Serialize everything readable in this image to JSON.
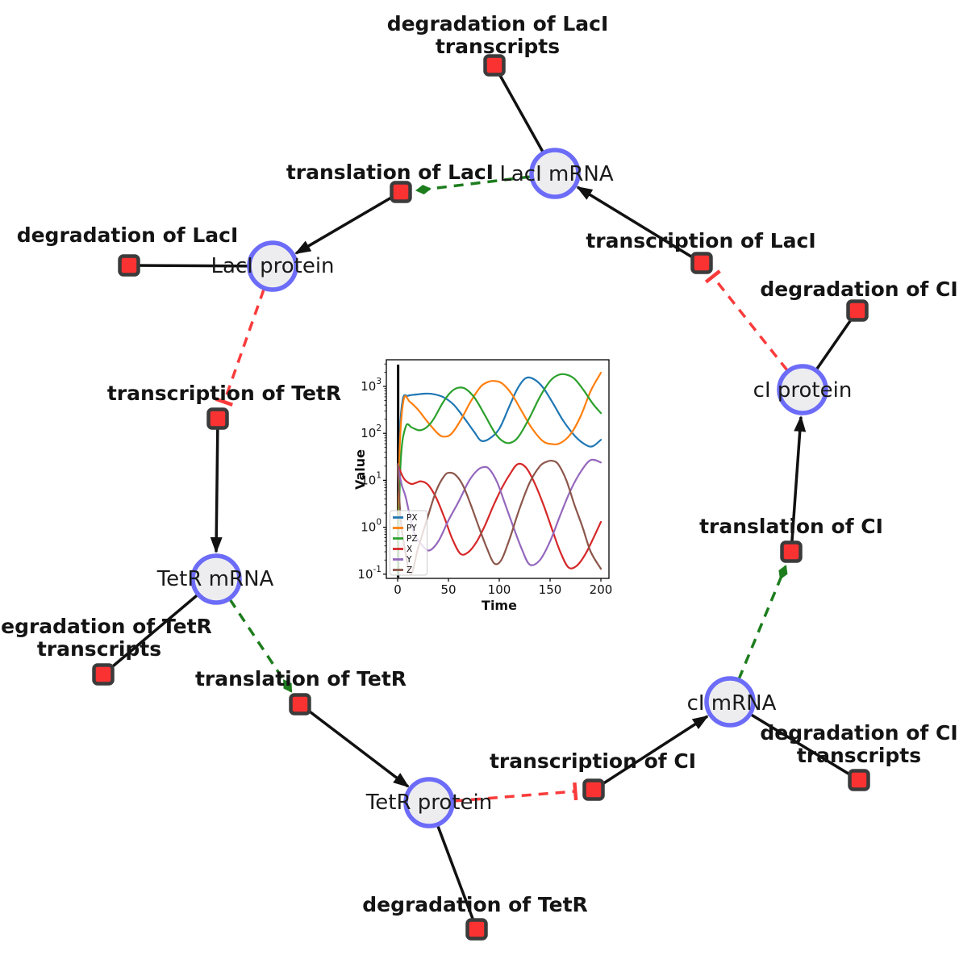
{
  "diagram": {
    "species_nodes": [
      {
        "id": "laci-mrna",
        "label": "LacI mRNA"
      },
      {
        "id": "laci-protein",
        "label": "LacI protein"
      },
      {
        "id": "ci-protein",
        "label": "cI protein"
      },
      {
        "id": "tetr-mrna",
        "label": "TetR mRNA"
      },
      {
        "id": "ci-mrna",
        "label": "cI mRNA"
      },
      {
        "id": "tetr-protein",
        "label": "TetR protein"
      }
    ],
    "reaction_nodes": [
      {
        "id": "degradation-laci-transcripts",
        "line1": "degradation of LacI",
        "line2": "transcripts"
      },
      {
        "id": "translation-laci",
        "line1": "translation of LacI"
      },
      {
        "id": "degradation-laci",
        "line1": "degradation of LacI"
      },
      {
        "id": "transcription-laci",
        "line1": "transcription of LacI"
      },
      {
        "id": "degradation-ci",
        "line1": "degradation of CI"
      },
      {
        "id": "transcription-tetr",
        "line1": "transcription of TetR"
      },
      {
        "id": "translation-ci",
        "line1": "translation of CI"
      },
      {
        "id": "degradation-tetr-transcripts",
        "line1": "degradation of TetR",
        "line2": "transcripts"
      },
      {
        "id": "translation-tetr",
        "line1": "translation of TetR"
      },
      {
        "id": "transcription-ci",
        "line1": "transcription of CI"
      },
      {
        "id": "degradation-ci-transcripts",
        "line1": "degradation of CI",
        "line2": "transcripts"
      },
      {
        "id": "degradation-tetr",
        "line1": "degradation of TetR"
      }
    ],
    "colors": {
      "species_fill": "#ededf0",
      "species_border": "#6c6cf8",
      "reaction_fill": "#fa3232",
      "reaction_border": "#3b3b3b",
      "edge": "#111111",
      "catalysis_edge": "#1d7d1d",
      "inhibition_edge": "#f93b3b"
    }
  },
  "chart_data": {
    "type": "line",
    "title": "",
    "xlabel": "Time",
    "ylabel": "Value",
    "yscale": "log",
    "xlim": [
      0,
      200
    ],
    "ylim": [
      0.083,
      3700
    ],
    "x_ticks": [
      0,
      50,
      100,
      150,
      200
    ],
    "y_tick_exponents": [
      -1,
      0,
      1,
      2,
      3
    ],
    "grid": false,
    "legend_position": "lower left",
    "vline_x": 0.5,
    "series": [
      {
        "name": "PX",
        "color": "#1f77b4",
        "x": [
          0,
          2,
          5,
          10,
          18,
          27,
          35,
          45,
          55,
          65,
          75,
          82,
          90,
          100,
          110,
          118,
          126,
          134,
          143,
          153,
          163,
          175,
          185,
          192,
          200
        ],
        "values": [
          0.1,
          60,
          520,
          630,
          670,
          700,
          685,
          590,
          410,
          220,
          110,
          70,
          76,
          125,
          380,
          900,
          1500,
          1430,
          950,
          430,
          185,
          85,
          57,
          53,
          73
        ]
      },
      {
        "name": "PY",
        "color": "#ff7f0e",
        "x": [
          0,
          2,
          6,
          12,
          20,
          30,
          40,
          46,
          53,
          62,
          72,
          82,
          90,
          96,
          103,
          112,
          122,
          132,
          143,
          152,
          160,
          170,
          180,
          190,
          200
        ],
        "values": [
          0.1,
          45,
          530,
          470,
          320,
          170,
          97,
          85,
          98,
          190,
          480,
          1000,
          1270,
          1300,
          1150,
          700,
          300,
          130,
          68,
          59,
          62,
          95,
          230,
          800,
          1950
        ]
      },
      {
        "name": "PZ",
        "color": "#2ca02c",
        "x": [
          0,
          3,
          8,
          14,
          21,
          28,
          35,
          45,
          53,
          60,
          67,
          76,
          86,
          96,
          104,
          111,
          119,
          130,
          140,
          150,
          158,
          166,
          174,
          183,
          192,
          200
        ],
        "values": [
          0.1,
          25,
          140,
          133,
          116,
          132,
          195,
          470,
          780,
          940,
          880,
          560,
          240,
          100,
          67,
          63,
          85,
          220,
          600,
          1300,
          1750,
          1780,
          1450,
          830,
          430,
          270
        ]
      },
      {
        "name": "X",
        "color": "#d62728",
        "x": [
          0,
          6,
          13,
          18,
          23,
          30,
          38,
          46,
          54,
          62,
          70,
          78,
          86,
          94,
          102,
          110,
          118,
          126,
          134,
          143,
          152,
          160,
          168,
          176,
          184,
          192,
          200
        ],
        "values": [
          22,
          11,
          8.4,
          8.8,
          9.5,
          8,
          4.2,
          1.6,
          0.55,
          0.27,
          0.3,
          0.5,
          1.1,
          2.8,
          6.5,
          13,
          22,
          19,
          9.5,
          3.2,
          0.9,
          0.3,
          0.14,
          0.15,
          0.25,
          0.55,
          1.3
        ]
      },
      {
        "name": "Y",
        "color": "#9467bd",
        "x": [
          0,
          4,
          8,
          16,
          24,
          31,
          40,
          50,
          60,
          70,
          78,
          84,
          90,
          98,
          106,
          114,
          122,
          130,
          140,
          150,
          160,
          170,
          180,
          190,
          200
        ],
        "values": [
          22,
          8,
          4.3,
          0.78,
          0.42,
          0.32,
          0.5,
          1.4,
          3.5,
          9.5,
          16,
          19,
          17.5,
          9,
          3,
          1,
          0.35,
          0.16,
          0.2,
          0.5,
          1.8,
          6,
          15,
          27,
          24
        ]
      },
      {
        "name": "Z",
        "color": "#8c564b",
        "x": [
          0,
          3,
          7,
          13,
          20,
          29,
          38,
          46,
          51,
          57,
          64,
          72,
          80,
          88,
          95,
          102,
          110,
          120,
          130,
          140,
          147,
          152,
          158,
          166,
          174,
          182,
          190,
          200
        ],
        "values": [
          22,
          1.5,
          0.35,
          0.1,
          0.35,
          1.5,
          6,
          12.5,
          14.5,
          13,
          8,
          3,
          1,
          0.35,
          0.17,
          0.2,
          0.55,
          2.5,
          9,
          20,
          25,
          26,
          22,
          10,
          3,
          1,
          0.3,
          0.13
        ]
      }
    ]
  }
}
